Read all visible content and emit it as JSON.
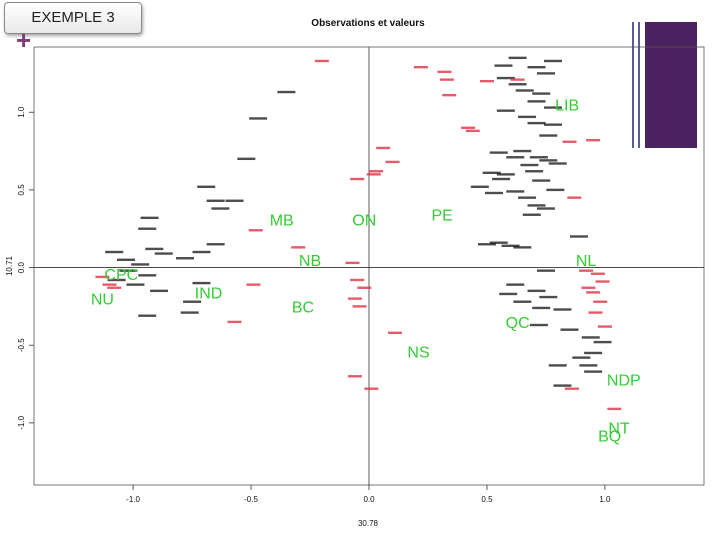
{
  "slide": {
    "badge_label": "EXEMPLE 3",
    "plus_glyph": "+",
    "accent_color": "#7a3c7a",
    "deco_color": "#4a2360"
  },
  "chart_data": {
    "type": "scatter",
    "title": "Observations et valeurs",
    "xlabel": "30.78",
    "ylabel": "10.71",
    "xlim": [
      -1.42,
      1.42
    ],
    "ylim": [
      -1.4,
      1.42
    ],
    "grid": false,
    "xticks": [
      -1.0,
      -0.5,
      0.0,
      0.5,
      1.0
    ],
    "xtick_labels": [
      "-1.0",
      "-0.5",
      "0.0",
      "0.5",
      "1.0"
    ],
    "yticks": [
      -1.0,
      -0.5,
      0.0,
      0.5,
      1.0
    ],
    "ytick_labels": [
      "-1.0",
      "-0.5",
      "0.0",
      "0.5",
      "1.0"
    ],
    "reference_lines": {
      "x": 0.0,
      "y": 0.0
    },
    "colors": {
      "values": "#33cc33",
      "observations_red": "#dd3344",
      "observations_black": "#111111",
      "axis": "#333333"
    },
    "values": [
      {
        "label": "LIB",
        "x": 0.84,
        "y": 1.05
      },
      {
        "label": "PE",
        "x": 0.31,
        "y": 0.34
      },
      {
        "label": "ON",
        "x": -0.02,
        "y": 0.31
      },
      {
        "label": "MB",
        "x": -0.37,
        "y": 0.31
      },
      {
        "label": "NB",
        "x": -0.25,
        "y": 0.05
      },
      {
        "label": "NL",
        "x": 0.92,
        "y": 0.05
      },
      {
        "label": "CPC",
        "x": -1.05,
        "y": -0.04
      },
      {
        "label": "NU",
        "x": -1.13,
        "y": -0.2
      },
      {
        "label": "IND",
        "x": -0.68,
        "y": -0.16
      },
      {
        "label": "BC",
        "x": -0.28,
        "y": -0.25
      },
      {
        "label": "QC",
        "x": 0.63,
        "y": -0.35
      },
      {
        "label": "NS",
        "x": 0.21,
        "y": -0.54
      },
      {
        "label": "NDP",
        "x": 1.08,
        "y": -0.72
      },
      {
        "label": "NT",
        "x": 1.06,
        "y": -1.03
      },
      {
        "label": "BQ",
        "x": 1.02,
        "y": -1.08
      }
    ],
    "observations_red": [
      [
        -0.2,
        1.33
      ],
      [
        0.22,
        1.29
      ],
      [
        0.32,
        1.26
      ],
      [
        0.33,
        1.21
      ],
      [
        0.5,
        1.2
      ],
      [
        0.63,
        1.21
      ],
      [
        0.34,
        1.11
      ],
      [
        0.42,
        0.9
      ],
      [
        0.44,
        0.88
      ],
      [
        0.06,
        0.77
      ],
      [
        0.1,
        0.68
      ],
      [
        0.03,
        0.62
      ],
      [
        0.02,
        0.6
      ],
      [
        -0.05,
        0.57
      ],
      [
        0.95,
        0.82
      ],
      [
        0.85,
        0.81
      ],
      [
        0.87,
        0.45
      ],
      [
        -0.48,
        0.24
      ],
      [
        -0.3,
        0.13
      ],
      [
        -0.07,
        0.03
      ],
      [
        -0.05,
        -0.08
      ],
      [
        -0.02,
        -0.13
      ],
      [
        -0.06,
        -0.2
      ],
      [
        -0.04,
        -0.25
      ],
      [
        0.11,
        -0.42
      ],
      [
        -0.06,
        -0.7
      ],
      [
        0.01,
        -0.78
      ],
      [
        0.92,
        -0.02
      ],
      [
        0.97,
        -0.04
      ],
      [
        0.99,
        -0.09
      ],
      [
        0.93,
        -0.13
      ],
      [
        0.95,
        -0.16
      ],
      [
        0.98,
        -0.22
      ],
      [
        0.96,
        -0.29
      ],
      [
        1.0,
        -0.38
      ],
      [
        1.04,
        -0.91
      ],
      [
        0.86,
        -0.78
      ],
      [
        -1.13,
        -0.06
      ],
      [
        -1.1,
        -0.11
      ],
      [
        -1.08,
        -0.13
      ],
      [
        -0.57,
        -0.35
      ],
      [
        -0.49,
        -0.11
      ]
    ],
    "observations_black": [
      [
        0.63,
        1.35
      ],
      [
        0.78,
        1.33
      ],
      [
        0.57,
        1.3
      ],
      [
        0.71,
        1.29
      ],
      [
        0.75,
        1.25
      ],
      [
        0.58,
        1.22
      ],
      [
        0.63,
        1.18
      ],
      [
        0.66,
        1.14
      ],
      [
        0.73,
        1.12
      ],
      [
        0.71,
        1.07
      ],
      [
        0.78,
        1.03
      ],
      [
        0.58,
        1.01
      ],
      [
        0.67,
        0.97
      ],
      [
        0.71,
        0.93
      ],
      [
        0.78,
        0.92
      ],
      [
        0.76,
        0.85
      ],
      [
        0.65,
        0.75
      ],
      [
        0.72,
        0.71
      ],
      [
        0.76,
        0.69
      ],
      [
        0.8,
        0.67
      ],
      [
        0.55,
        0.74
      ],
      [
        0.62,
        0.71
      ],
      [
        0.68,
        0.66
      ],
      [
        0.7,
        0.62
      ],
      [
        0.58,
        0.6
      ],
      [
        0.73,
        0.56
      ],
      [
        0.79,
        0.5
      ],
      [
        0.67,
        0.45
      ],
      [
        0.71,
        0.4
      ],
      [
        0.75,
        0.38
      ],
      [
        0.52,
        0.61
      ],
      [
        0.56,
        0.57
      ],
      [
        0.47,
        0.52
      ],
      [
        0.53,
        0.48
      ],
      [
        0.69,
        0.34
      ],
      [
        0.62,
        0.49
      ],
      [
        0.89,
        0.2
      ],
      [
        0.5,
        0.15
      ],
      [
        0.6,
        0.14
      ],
      [
        0.75,
        -0.02
      ],
      [
        0.62,
        -0.11
      ],
      [
        0.59,
        -0.17
      ],
      [
        0.71,
        -0.15
      ],
      [
        0.76,
        -0.19
      ],
      [
        0.73,
        -0.26
      ],
      [
        0.82,
        -0.27
      ],
      [
        0.65,
        -0.22
      ],
      [
        0.72,
        -0.37
      ],
      [
        0.85,
        -0.4
      ],
      [
        0.94,
        -0.45
      ],
      [
        0.99,
        -0.48
      ],
      [
        0.95,
        -0.55
      ],
      [
        0.9,
        -0.58
      ],
      [
        0.93,
        -0.63
      ],
      [
        0.8,
        -0.63
      ],
      [
        0.95,
        -0.67
      ],
      [
        0.82,
        -0.76
      ],
      [
        -0.35,
        1.13
      ],
      [
        -0.47,
        0.96
      ],
      [
        -0.52,
        0.7
      ],
      [
        -0.69,
        0.52
      ],
      [
        -0.65,
        0.43
      ],
      [
        -0.57,
        0.43
      ],
      [
        -0.63,
        0.38
      ],
      [
        -0.93,
        0.32
      ],
      [
        -0.94,
        0.25
      ],
      [
        -0.65,
        0.15
      ],
      [
        -0.71,
        0.1
      ],
      [
        -0.91,
        0.12
      ],
      [
        -0.87,
        0.09
      ],
      [
        -0.78,
        0.06
      ],
      [
        -1.08,
        0.1
      ],
      [
        -1.03,
        0.05
      ],
      [
        -0.97,
        0.02
      ],
      [
        -1.02,
        -0.02
      ],
      [
        -0.94,
        -0.05
      ],
      [
        -1.07,
        -0.08
      ],
      [
        -0.99,
        -0.11
      ],
      [
        -0.89,
        -0.15
      ],
      [
        -0.71,
        -0.1
      ],
      [
        -0.75,
        -0.22
      ],
      [
        -0.76,
        -0.29
      ],
      [
        -0.94,
        -0.31
      ],
      [
        0.55,
        0.16
      ],
      [
        0.65,
        0.13
      ]
    ]
  }
}
